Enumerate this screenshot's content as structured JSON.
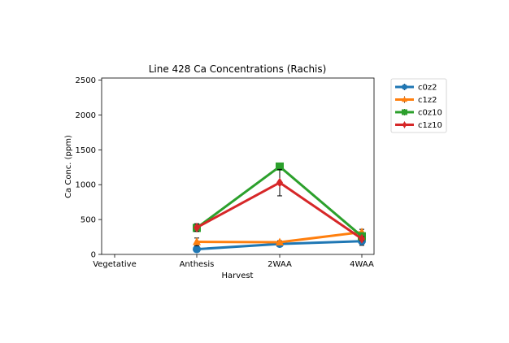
{
  "chart_data": {
    "type": "line",
    "title": "Line 428 Ca Concentrations (Rachis)",
    "xlabel": "Harvest",
    "ylabel": "Ca Conc. (ppm)",
    "categories": [
      "Vegetative",
      "Anthesis",
      "2WAA",
      "4WAA"
    ],
    "ylim": [
      0,
      2530
    ],
    "yticks": [
      0,
      500,
      1000,
      1500,
      2000,
      2500
    ],
    "legend_position": "outside-top-right",
    "series": [
      {
        "name": "c0z2",
        "color": "#1f77b4",
        "marker": "circle",
        "values": [
          null,
          75,
          150,
          190
        ],
        "errors": [
          null,
          15,
          25,
          60
        ]
      },
      {
        "name": "c1z2",
        "color": "#ff7f0e",
        "marker": "triangle",
        "values": [
          null,
          180,
          175,
          320
        ],
        "errors": [
          null,
          55,
          20,
          40
        ]
      },
      {
        "name": "c0z10",
        "color": "#2ca02c",
        "marker": "square",
        "values": [
          null,
          380,
          1260,
          260
        ],
        "errors": [
          null,
          20,
          25,
          25
        ]
      },
      {
        "name": "c1z10",
        "color": "#d62728",
        "marker": "diamond",
        "values": [
          null,
          385,
          1030,
          225
        ],
        "errors": [
          null,
          55,
          190,
          30
        ]
      }
    ]
  }
}
